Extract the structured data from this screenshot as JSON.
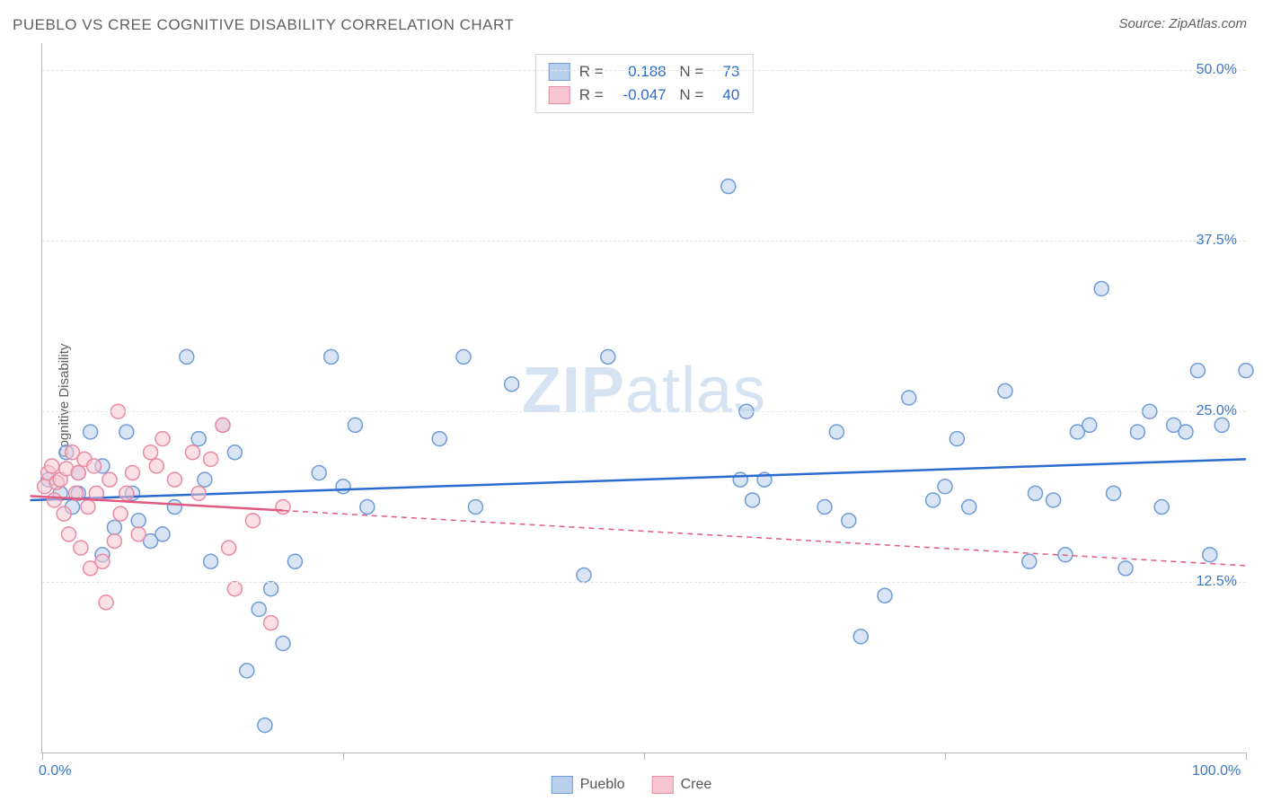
{
  "header": {
    "title": "PUEBLO VS CREE COGNITIVE DISABILITY CORRELATION CHART",
    "source": "Source: ZipAtlas.com"
  },
  "ylabel": "Cognitive Disability",
  "watermark": "ZIPatlas",
  "chart": {
    "type": "scatter",
    "background": "#ffffff",
    "xlim": [
      0,
      100
    ],
    "ylim": [
      0,
      52
    ],
    "grid_color": "#e6e6e6",
    "grid_dash": "6 5",
    "xticks": [
      {
        "v": 0,
        "label": "0.0%"
      },
      {
        "v": 25,
        "label": ""
      },
      {
        "v": 50,
        "label": ""
      },
      {
        "v": 75,
        "label": ""
      },
      {
        "v": 100,
        "label": "100.0%"
      }
    ],
    "yticks": [
      {
        "v": 12.5,
        "label": "12.5%"
      },
      {
        "v": 25,
        "label": "25.0%"
      },
      {
        "v": 37.5,
        "label": "37.5%"
      },
      {
        "v": 50,
        "label": "50.0%"
      }
    ],
    "marker_radius": 8,
    "marker_stroke_width": 1.5,
    "trend_width": 2.5,
    "trend_ext_dash": "6 5",
    "series": [
      {
        "name": "Pueblo",
        "fill": "#b9d0ed",
        "stroke": "#6f9cd6",
        "line": "#2b6cd0",
        "R": "0.188",
        "N": "73",
        "trend": {
          "x1": -1,
          "y1": 18.5,
          "x2": 100,
          "y2": 21.5,
          "data_xmax": 100
        },
        "points": [
          [
            0.5,
            20
          ],
          [
            1.5,
            19
          ],
          [
            2,
            22
          ],
          [
            2.5,
            18
          ],
          [
            3,
            20.5
          ],
          [
            3,
            19
          ],
          [
            4,
            23.5
          ],
          [
            5,
            21
          ],
          [
            5,
            14.5
          ],
          [
            6,
            16.5
          ],
          [
            7,
            23.5
          ],
          [
            7.5,
            19
          ],
          [
            8,
            17
          ],
          [
            9,
            15.5
          ],
          [
            10,
            16
          ],
          [
            11,
            18
          ],
          [
            12,
            29
          ],
          [
            13,
            23
          ],
          [
            13.5,
            20
          ],
          [
            14,
            14
          ],
          [
            15,
            24
          ],
          [
            16,
            22
          ],
          [
            17,
            6
          ],
          [
            18,
            10.5
          ],
          [
            18.5,
            2
          ],
          [
            19,
            12
          ],
          [
            20,
            8
          ],
          [
            21,
            14
          ],
          [
            23,
            20.5
          ],
          [
            24,
            29
          ],
          [
            25,
            19.5
          ],
          [
            26,
            24
          ],
          [
            27,
            18
          ],
          [
            33,
            23
          ],
          [
            35,
            29
          ],
          [
            36,
            18
          ],
          [
            39,
            27
          ],
          [
            45,
            13
          ],
          [
            47,
            29
          ],
          [
            57,
            41.5
          ],
          [
            58,
            20
          ],
          [
            58.5,
            25
          ],
          [
            59,
            18.5
          ],
          [
            60,
            20
          ],
          [
            65,
            18
          ],
          [
            66,
            23.5
          ],
          [
            67,
            17
          ],
          [
            68,
            8.5
          ],
          [
            70,
            11.5
          ],
          [
            72,
            26
          ],
          [
            74,
            18.5
          ],
          [
            75,
            19.5
          ],
          [
            76,
            23
          ],
          [
            77,
            18
          ],
          [
            80,
            26.5
          ],
          [
            82,
            14
          ],
          [
            82.5,
            19
          ],
          [
            84,
            18.5
          ],
          [
            85,
            14.5
          ],
          [
            86,
            23.5
          ],
          [
            87,
            24
          ],
          [
            88,
            34
          ],
          [
            89,
            19
          ],
          [
            90,
            13.5
          ],
          [
            91,
            23.5
          ],
          [
            92,
            25
          ],
          [
            93,
            18
          ],
          [
            94,
            24
          ],
          [
            95,
            23.5
          ],
          [
            96,
            28
          ],
          [
            97,
            14.5
          ],
          [
            98,
            24
          ],
          [
            100,
            28
          ]
        ]
      },
      {
        "name": "Cree",
        "fill": "#f7c6d1",
        "stroke": "#e88aa3",
        "line": "#e05a82",
        "R": "-0.047",
        "N": "40",
        "trend": {
          "x1": -1,
          "y1": 18.8,
          "x2": 100,
          "y2": 13.7,
          "data_xmax": 20
        },
        "points": [
          [
            0.2,
            19.5
          ],
          [
            0.5,
            20.5
          ],
          [
            0.8,
            21
          ],
          [
            1,
            18.5
          ],
          [
            1.2,
            19.8
          ],
          [
            1.5,
            20
          ],
          [
            1.8,
            17.5
          ],
          [
            2,
            20.8
          ],
          [
            2.2,
            16
          ],
          [
            2.5,
            22
          ],
          [
            2.8,
            19
          ],
          [
            3,
            20.5
          ],
          [
            3.2,
            15
          ],
          [
            3.5,
            21.5
          ],
          [
            3.8,
            18
          ],
          [
            4,
            13.5
          ],
          [
            4.3,
            21
          ],
          [
            4.5,
            19
          ],
          [
            5,
            14
          ],
          [
            5.3,
            11
          ],
          [
            5.6,
            20
          ],
          [
            6,
            15.5
          ],
          [
            6.3,
            25
          ],
          [
            6.5,
            17.5
          ],
          [
            7,
            19
          ],
          [
            7.5,
            20.5
          ],
          [
            8,
            16
          ],
          [
            9,
            22
          ],
          [
            9.5,
            21
          ],
          [
            10,
            23
          ],
          [
            11,
            20
          ],
          [
            12.5,
            22
          ],
          [
            13,
            19
          ],
          [
            14,
            21.5
          ],
          [
            15,
            24
          ],
          [
            15.5,
            15
          ],
          [
            16,
            12
          ],
          [
            17.5,
            17
          ],
          [
            19,
            9.5
          ],
          [
            20,
            18
          ]
        ]
      }
    ]
  },
  "legend": {
    "items": [
      {
        "label": "Pueblo",
        "sw": "blue"
      },
      {
        "label": "Cree",
        "sw": "pink"
      }
    ]
  },
  "colors": {
    "axis": "#b8b8b8",
    "text_muted": "#606060",
    "value_blue": "#2b6cd0"
  }
}
